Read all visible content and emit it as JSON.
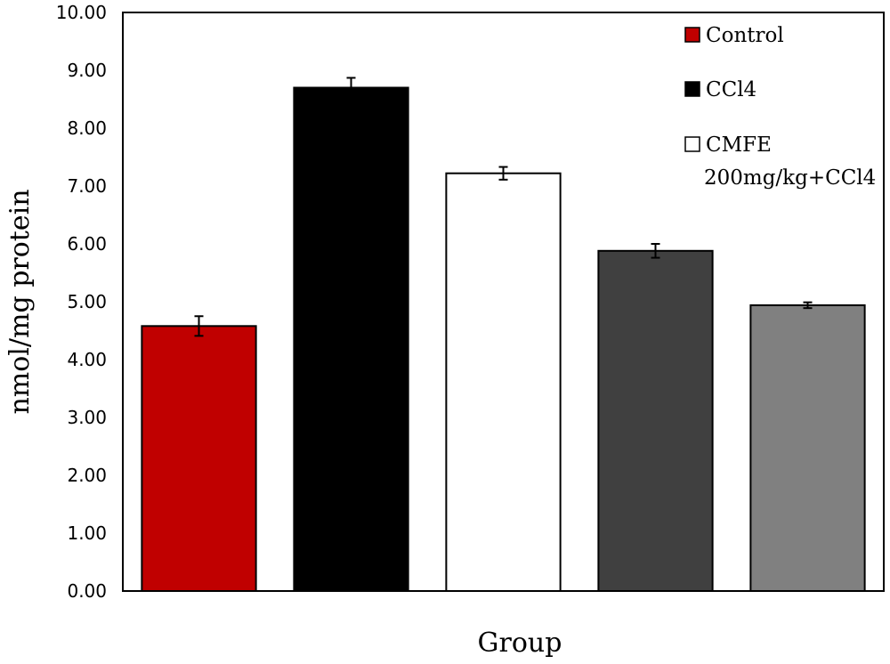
{
  "chart_data": {
    "type": "bar",
    "xlabel": "Group",
    "ylabel": "nmol/mg protein",
    "ylim": [
      0,
      10
    ],
    "yticks": [
      "0.00",
      "1.00",
      "2.00",
      "3.00",
      "4.00",
      "5.00",
      "6.00",
      "7.00",
      "8.00",
      "9.00",
      "10.00"
    ],
    "grid": false,
    "legend_position": "top-right",
    "bars": [
      {
        "value": 4.58,
        "error": 0.17,
        "color": "#c00000"
      },
      {
        "value": 8.7,
        "error": 0.17,
        "color": "#000000"
      },
      {
        "value": 7.22,
        "error": 0.11,
        "color": "#ffffff"
      },
      {
        "value": 5.88,
        "error": 0.12,
        "color": "#404040"
      },
      {
        "value": 4.94,
        "error": 0.05,
        "color": "#808080"
      }
    ],
    "legend": [
      {
        "lines": [
          "Control"
        ],
        "color": "#c00000"
      },
      {
        "lines": [
          "CCl4"
        ],
        "color": "#000000"
      },
      {
        "lines": [
          "CMFE",
          "200mg/kg+CCl4"
        ],
        "color": "#ffffff"
      }
    ]
  }
}
